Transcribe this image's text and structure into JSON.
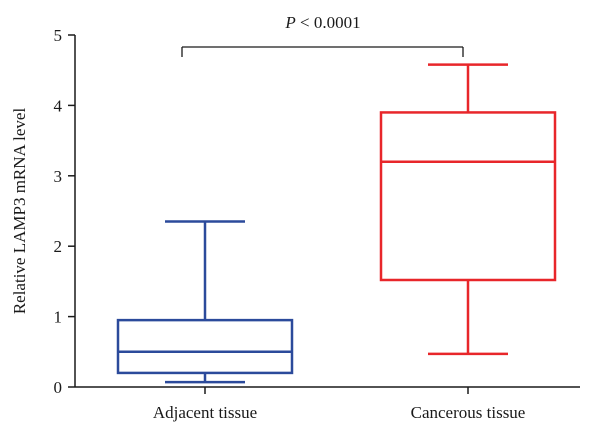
{
  "chart_data": {
    "type": "box",
    "ylabel": "Relative LAMP3 mRNA level",
    "ylim": [
      0,
      5
    ],
    "yticks": [
      "0",
      "1",
      "2",
      "3",
      "4",
      "5"
    ],
    "grid": false,
    "categories": [
      "Adjacent tissue",
      "Cancerous tissue"
    ],
    "boxes": [
      {
        "category": "Adjacent tissue",
        "min": 0.07,
        "q1": 0.2,
        "median": 0.5,
        "q3": 0.95,
        "max": 2.35,
        "color": "#2b4a9b"
      },
      {
        "category": "Cancerous tissue",
        "min": 0.47,
        "q1": 1.52,
        "median": 3.2,
        "q3": 3.9,
        "max": 4.58,
        "color": "#e8262a"
      }
    ],
    "annotation": {
      "p_symbol": "P",
      "p_rest": " < 0.0001"
    }
  }
}
